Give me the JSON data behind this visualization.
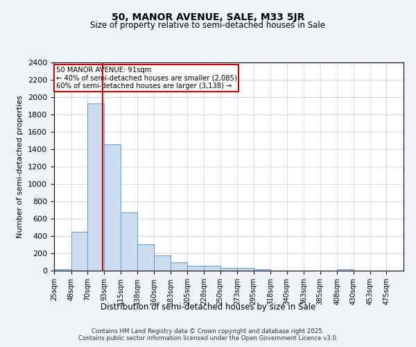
{
  "title": "50, MANOR AVENUE, SALE, M33 5JR",
  "subtitle": "Size of property relative to semi-detached houses in Sale",
  "xlabel": "Distribution of semi-detached houses by size in Sale",
  "ylabel": "Number of semi-detached properties",
  "bar_color": "#ccddf0",
  "bar_edge_color": "#5b9bd5",
  "vline_x": 91,
  "vline_color": "#cc0000",
  "annotation_title": "50 MANOR AVENUE: 91sqm",
  "annotation_line1": "← 40% of semi-detached houses are smaller (2,085)",
  "annotation_line2": "60% of semi-detached houses are larger (3,138) →",
  "annotation_box_color": "#cc0000",
  "categories": [
    "25sqm",
    "48sqm",
    "70sqm",
    "93sqm",
    "115sqm",
    "138sqm",
    "160sqm",
    "183sqm",
    "205sqm",
    "228sqm",
    "250sqm",
    "273sqm",
    "295sqm",
    "318sqm",
    "340sqm",
    "363sqm",
    "385sqm",
    "408sqm",
    "430sqm",
    "453sqm",
    "475sqm"
  ],
  "bin_edges": [
    25,
    48,
    70,
    93,
    115,
    138,
    160,
    183,
    205,
    228,
    250,
    273,
    295,
    318,
    340,
    363,
    385,
    408,
    430,
    453,
    475,
    498
  ],
  "values": [
    20,
    450,
    1930,
    1455,
    670,
    305,
    175,
    100,
    60,
    60,
    35,
    35,
    20,
    0,
    0,
    0,
    0,
    15,
    0,
    0,
    0
  ],
  "ylim": [
    0,
    2400
  ],
  "yticks": [
    0,
    200,
    400,
    600,
    800,
    1000,
    1200,
    1400,
    1600,
    1800,
    2000,
    2200,
    2400
  ],
  "footer_line1": "Contains HM Land Registry data © Crown copyright and database right 2025.",
  "footer_line2": "Contains public sector information licensed under the Open Government Licence v3.0.",
  "bg_color": "#eef3f8",
  "plot_bg_color": "#ffffff"
}
